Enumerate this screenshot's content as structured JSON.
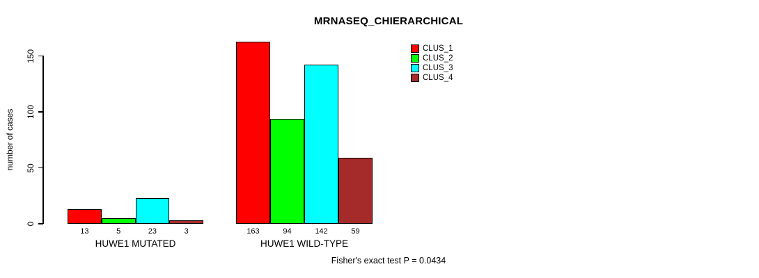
{
  "title": "MRNASEQ_CHIERARCHICAL",
  "y_axis": {
    "label": "number of cases",
    "ticks": [
      0,
      50,
      100,
      150
    ]
  },
  "footnote": "Fisher's exact test P = 0.0434",
  "legend": [
    {
      "label": "CLUS_1",
      "color": "#FF0000"
    },
    {
      "label": "CLUS_2",
      "color": "#00FF00"
    },
    {
      "label": "CLUS_3",
      "color": "#00FFFF"
    },
    {
      "label": "CLUS_4",
      "color": "#A52A2A"
    }
  ],
  "chart_data": {
    "type": "bar",
    "title": "MRNASEQ_CHIERARCHICAL",
    "ylabel": "number of cases",
    "xlabel": "",
    "ylim": [
      0,
      170
    ],
    "yticks": [
      0,
      50,
      100,
      150
    ],
    "grid": false,
    "legend_position": "top-right",
    "bar_value_labels_shown": true,
    "series": [
      "CLUS_1",
      "CLUS_2",
      "CLUS_3",
      "CLUS_4"
    ],
    "series_colors": [
      "#FF0000",
      "#00FF00",
      "#00FFFF",
      "#A52A2A"
    ],
    "categories": [
      "HUWE1 MUTATED",
      "HUWE1 WILD-TYPE"
    ],
    "groups": [
      {
        "label": "HUWE1 MUTATED",
        "values": [
          13,
          5,
          23,
          3
        ]
      },
      {
        "label": "HUWE1 WILD-TYPE",
        "values": [
          163,
          94,
          142,
          59
        ]
      }
    ],
    "annotation": "Fisher's exact test P = 0.0434"
  }
}
